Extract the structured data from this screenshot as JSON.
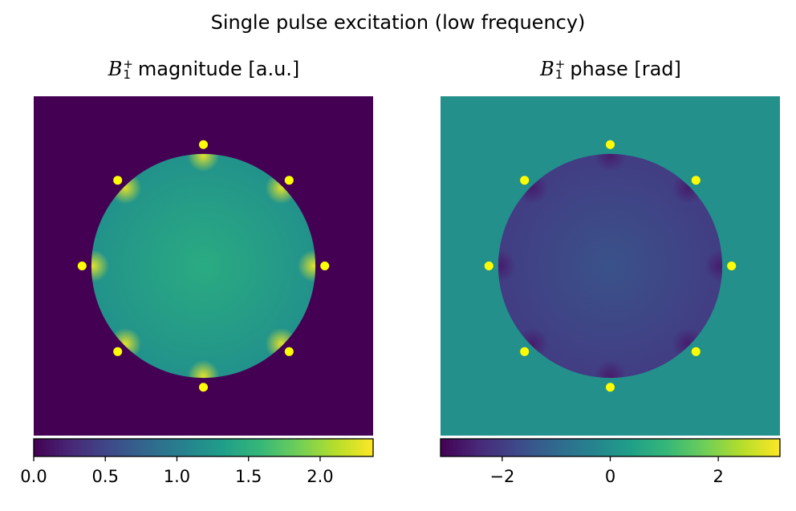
{
  "figure": {
    "suptitle": "Single pulse excitation (low frequency)"
  },
  "colors": {
    "viridis": [
      "#440154",
      "#482878",
      "#3e4989",
      "#31688e",
      "#26828e",
      "#1f9e89",
      "#35b779",
      "#6ece58",
      "#b5de2b",
      "#fde725"
    ],
    "marker": "#ffff00",
    "background_magnitude": "#440154",
    "background_phase": "#21918c"
  },
  "chart_data": [
    {
      "type": "heatmap",
      "title": "B₁⁺ magnitude [a.u.]",
      "title_parts": {
        "symbol": "B",
        "sub": "1",
        "sup": "+",
        "rest": "magnitude [a.u.]"
      },
      "colorbar": {
        "range": [
          0.0,
          2.37
        ],
        "orientation": "horizontal",
        "ticks": [
          0.0,
          0.5,
          1.0,
          1.5,
          2.0
        ],
        "tick_labels": [
          "0.0",
          "0.5",
          "1.0",
          "1.5",
          "2.0"
        ]
      },
      "field": {
        "outside_value": 0.0,
        "center_value": 1.45,
        "edge_value": 1.2,
        "hotspot_value": 2.3
      },
      "phantom_radius": 0.66,
      "coil_markers": [
        {
          "x": 0.0,
          "y": 0.715
        },
        {
          "x": 0.505,
          "y": 0.505
        },
        {
          "x": 0.715,
          "y": 0.0
        },
        {
          "x": 0.505,
          "y": -0.505
        },
        {
          "x": 0.0,
          "y": -0.715
        },
        {
          "x": -0.505,
          "y": -0.505
        },
        {
          "x": -0.715,
          "y": 0.0
        },
        {
          "x": -0.505,
          "y": 0.505
        }
      ],
      "axes": "off"
    },
    {
      "type": "heatmap",
      "title": "B₁⁺ phase [rad]",
      "title_parts": {
        "symbol": "B",
        "sub": "1",
        "sup": "+",
        "rest": "phase [rad]"
      },
      "colorbar": {
        "range": [
          -3.14159,
          3.14159
        ],
        "orientation": "horizontal",
        "ticks": [
          -2,
          0,
          2
        ],
        "tick_labels": [
          "−2",
          "0",
          "2"
        ]
      },
      "field": {
        "outside_value": 0.0,
        "center_value": -1.55,
        "edge_value": -2.0,
        "hotspot_value": -2.7
      },
      "phantom_radius": 0.66,
      "coil_markers": [
        {
          "x": 0.0,
          "y": 0.715
        },
        {
          "x": 0.505,
          "y": 0.505
        },
        {
          "x": 0.715,
          "y": 0.0
        },
        {
          "x": 0.505,
          "y": -0.505
        },
        {
          "x": 0.0,
          "y": -0.715
        },
        {
          "x": -0.505,
          "y": -0.505
        },
        {
          "x": -0.715,
          "y": 0.0
        },
        {
          "x": -0.505,
          "y": 0.505
        }
      ],
      "axes": "off"
    }
  ]
}
